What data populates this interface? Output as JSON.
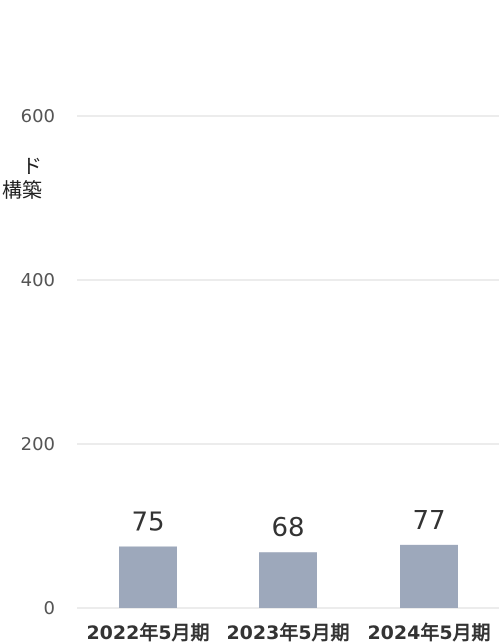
{
  "side_text": [
    "ド",
    "構築"
  ],
  "chart_data": {
    "type": "bar",
    "categories": [
      "2022年5月期",
      "2023年5月期",
      "2024年5月期"
    ],
    "values": [
      75,
      68,
      77
    ],
    "data_labels": [
      "75",
      "68",
      "77"
    ],
    "yticks": [
      "0",
      "200",
      "400",
      "600"
    ],
    "ylim": [
      0,
      600
    ],
    "grid": true,
    "bar_color": "#9da8bb",
    "grid_color": "#d9d9d9"
  }
}
